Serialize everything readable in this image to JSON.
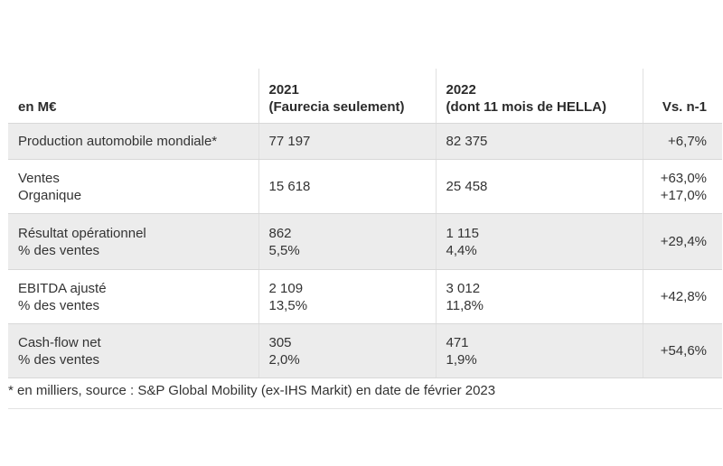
{
  "table": {
    "headers": {
      "label": "en M€",
      "col2021": [
        "2021",
        "(Faurecia seulement)"
      ],
      "col2022": [
        "2022",
        "(dont 11 mois de HELLA)"
      ],
      "change": "Vs. n-1"
    },
    "rows": [
      {
        "label": [
          "Production automobile mondiale*"
        ],
        "y2021": [
          "77 197"
        ],
        "y2022": [
          "82 375"
        ],
        "change": [
          "+6,7%"
        ]
      },
      {
        "label": [
          "Ventes",
          "Organique"
        ],
        "y2021": [
          "15 618"
        ],
        "y2022": [
          "25 458"
        ],
        "change": [
          "+63,0%",
          "+17,0%"
        ]
      },
      {
        "label": [
          "Résultat opérationnel",
          "% des ventes"
        ],
        "y2021": [
          "862",
          "5,5%"
        ],
        "y2022": [
          "1 115",
          "4,4%"
        ],
        "change": [
          "+29,4%"
        ]
      },
      {
        "label": [
          "EBITDA ajusté",
          "% des ventes"
        ],
        "y2021": [
          "2 109",
          "13,5%"
        ],
        "y2022": [
          "3 012",
          "11,8%"
        ],
        "change": [
          "+42,8%"
        ]
      },
      {
        "label": [
          "Cash-flow net",
          "% des ventes"
        ],
        "y2021": [
          "305",
          "2,0%"
        ],
        "y2022": [
          "471",
          "1,9%"
        ],
        "change": [
          "+54,6%"
        ]
      }
    ]
  },
  "footnote": "* en milliers, source : S&P Global Mobility (ex-IHS Markit) en date de février 2023",
  "colors": {
    "shaded_row": "#ececec",
    "text": "#333333",
    "grid": "#e0e0e0"
  }
}
